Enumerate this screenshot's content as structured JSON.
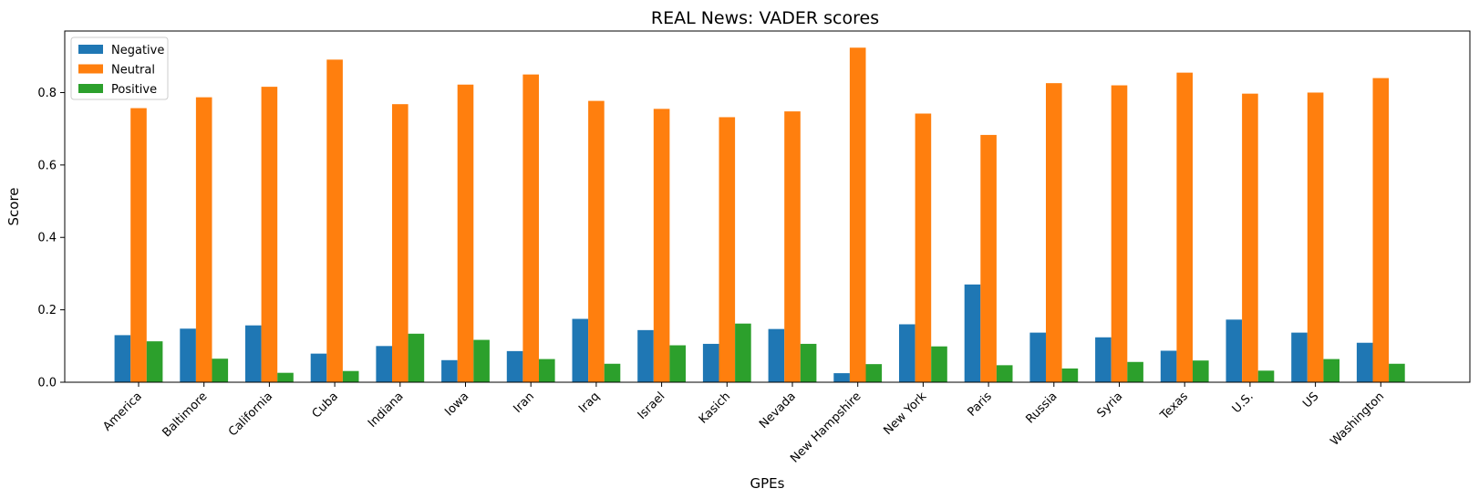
{
  "chart_data": {
    "type": "bar",
    "title": "REAL News: VADER scores",
    "xlabel": "GPEs",
    "ylabel": "Score",
    "ylim": [
      0,
      0.97
    ],
    "yticks": [
      0.0,
      0.2,
      0.4,
      0.6,
      0.8
    ],
    "ytick_labels": [
      "0.0",
      "0.2",
      "0.4",
      "0.6",
      "0.8"
    ],
    "legend_position": "top-left",
    "grid": false,
    "categories": [
      "America",
      "Baltimore",
      "California",
      "Cuba",
      "Indiana",
      "Iowa",
      "Iran",
      "Iraq",
      "Israel",
      "Kasich",
      "Nevada",
      "New Hampshire",
      "New York",
      "Paris",
      "Russia",
      "Syria",
      "Texas",
      "U.S.",
      "US",
      "Washington"
    ],
    "series": [
      {
        "name": "Negative",
        "color": "#1f77b4",
        "values": [
          0.13,
          0.148,
          0.157,
          0.079,
          0.1,
          0.061,
          0.086,
          0.175,
          0.144,
          0.106,
          0.147,
          0.025,
          0.16,
          0.27,
          0.137,
          0.124,
          0.087,
          0.173,
          0.137,
          0.109
        ]
      },
      {
        "name": "Neutral",
        "color": "#ff7f0e",
        "values": [
          0.757,
          0.787,
          0.816,
          0.891,
          0.768,
          0.822,
          0.85,
          0.777,
          0.755,
          0.732,
          0.748,
          0.924,
          0.742,
          0.683,
          0.826,
          0.82,
          0.855,
          0.797,
          0.8,
          0.84
        ]
      },
      {
        "name": "Positive",
        "color": "#2ca02c",
        "values": [
          0.113,
          0.065,
          0.026,
          0.031,
          0.134,
          0.117,
          0.064,
          0.051,
          0.102,
          0.162,
          0.106,
          0.05,
          0.099,
          0.047,
          0.038,
          0.056,
          0.06,
          0.032,
          0.064,
          0.051
        ]
      }
    ]
  }
}
